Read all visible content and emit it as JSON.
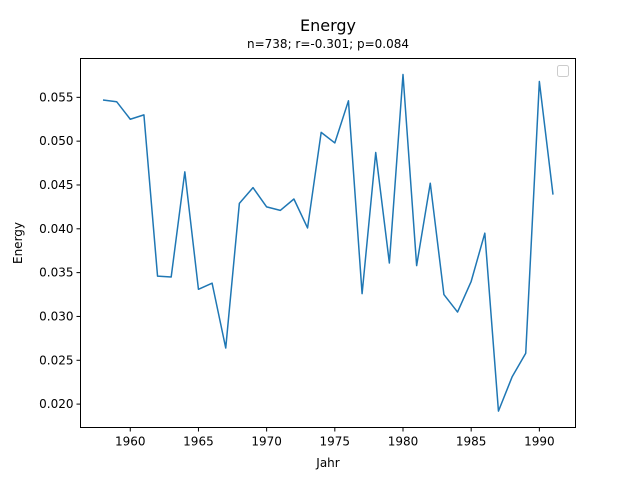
{
  "chart_data": {
    "type": "line",
    "title": "Energy",
    "subtitle": "n=738; r=-0.301; p=0.084",
    "xlabel": "Jahr",
    "ylabel": "Energy",
    "xlim": [
      1956.35,
      1992.65
    ],
    "ylim": [
      0.01733,
      0.05943
    ],
    "xticks": [
      1960,
      1965,
      1970,
      1975,
      1980,
      1985,
      1990
    ],
    "xtick_labels": [
      "1960",
      "1965",
      "1970",
      "1975",
      "1980",
      "1985",
      "1990"
    ],
    "yticks": [
      0.02,
      0.025,
      0.03,
      0.035,
      0.04,
      0.045,
      0.05,
      0.055
    ],
    "ytick_labels": [
      "0.020",
      "0.025",
      "0.030",
      "0.035",
      "0.040",
      "0.045",
      "0.050",
      "0.055"
    ],
    "legend": "top-right, empty",
    "grid": false,
    "color": "#1f77b4",
    "series": [
      {
        "x": [
          1958,
          1959,
          1960,
          1961,
          1962,
          1963,
          1964,
          1965,
          1966,
          1967,
          1968,
          1969,
          1970,
          1971,
          1972,
          1973,
          1974,
          1975,
          1976,
          1977,
          1978,
          1979,
          1980,
          1981,
          1982,
          1983,
          1984,
          1985,
          1986,
          1987,
          1988,
          1989,
          1990,
          1991
        ],
        "y": [
          0.0547,
          0.0545,
          0.0525,
          0.053,
          0.0346,
          0.0345,
          0.0465,
          0.0331,
          0.0338,
          0.0264,
          0.0429,
          0.0447,
          0.0425,
          0.0421,
          0.0434,
          0.0401,
          0.051,
          0.0498,
          0.0546,
          0.0326,
          0.0487,
          0.0361,
          0.0576,
          0.0358,
          0.0452,
          0.0325,
          0.0305,
          0.034,
          0.0395,
          0.0192,
          0.0231,
          0.0258,
          0.0568,
          0.0439
        ]
      }
    ]
  }
}
